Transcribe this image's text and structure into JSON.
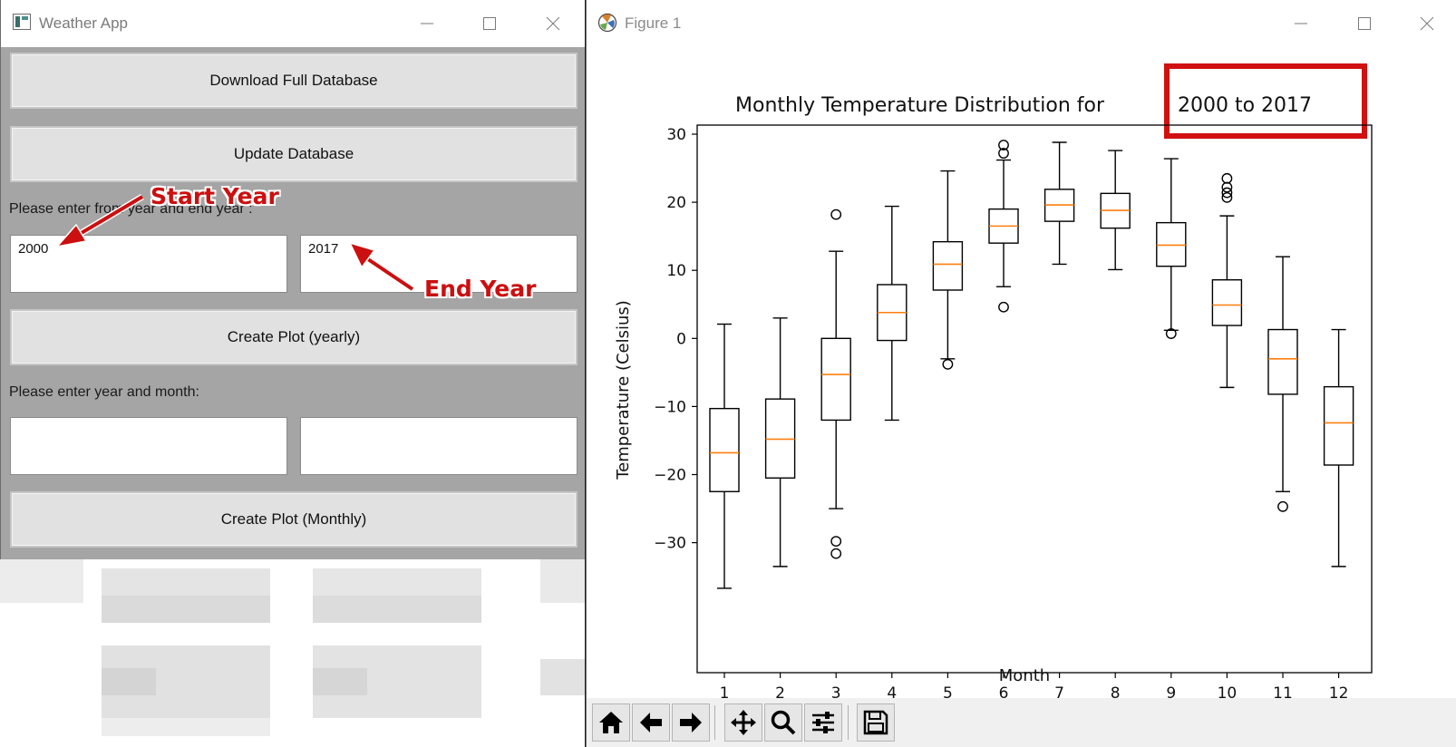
{
  "weather_app": {
    "title": "Weather App",
    "buttons": {
      "download": "Download Full Database",
      "update": "Update Database",
      "plot_yearly": "Create Plot (yearly)",
      "plot_monthly": "Create Plot (Monthly)"
    },
    "labels": {
      "year_range": "Please enter from year and end year :",
      "year_month": "Please enter year and month:"
    },
    "inputs": {
      "start_year": "2000",
      "end_year": "2017",
      "year": "",
      "month": ""
    },
    "annotations": {
      "start": "Start Year",
      "end": "End Year"
    }
  },
  "figure": {
    "title": "Figure 1"
  },
  "icons": [
    "app-icon",
    "figure-icon",
    "minimize-icon",
    "maximize-icon",
    "close-icon",
    "home-icon",
    "back-arrow-icon",
    "forward-arrow-icon",
    "pan-icon",
    "zoom-icon",
    "configure-icon",
    "save-icon"
  ],
  "colors": {
    "annotation_red": "#cc0f0f",
    "median_orange": "#ff7f0e",
    "app_background": "#a5a5a5"
  },
  "chart_data": {
    "type": "boxplot",
    "title_prefix": "Monthly Temperature Distribution for",
    "title_highlight": "2000 to 2017",
    "xlabel": "Month",
    "ylabel": "Temperature (Celsius)",
    "categories": [
      "1",
      "2",
      "3",
      "4",
      "5",
      "6",
      "7",
      "8",
      "9",
      "10",
      "11",
      "12"
    ],
    "ylim": [
      -40,
      32
    ],
    "yticks": [
      30,
      20,
      10,
      0,
      -10,
      -20,
      -30
    ],
    "yticklabels": [
      "30",
      "20",
      "10",
      "0",
      "−10",
      "−20",
      "−30"
    ],
    "boxes": [
      {
        "whislo": -36.7,
        "q1": -22.5,
        "med": -16.8,
        "q3": -10.3,
        "whishi": 2.1,
        "fliers": []
      },
      {
        "whislo": -33.5,
        "q1": -20.5,
        "med": -14.8,
        "q3": -8.9,
        "whishi": 3.0,
        "fliers": []
      },
      {
        "whislo": -25.0,
        "q1": -12.0,
        "med": -5.3,
        "q3": 0.0,
        "whishi": 12.8,
        "fliers": [
          18.2,
          -29.8,
          -31.6
        ]
      },
      {
        "whislo": -12.0,
        "q1": -0.3,
        "med": 3.8,
        "q3": 7.9,
        "whishi": 19.4,
        "fliers": []
      },
      {
        "whislo": -3.0,
        "q1": 7.1,
        "med": 10.9,
        "q3": 14.2,
        "whishi": 24.6,
        "fliers": [
          -3.8
        ]
      },
      {
        "whislo": 7.6,
        "q1": 14.0,
        "med": 16.5,
        "q3": 19.0,
        "whishi": 26.2,
        "fliers": [
          28.4,
          27.2,
          4.6
        ]
      },
      {
        "whislo": 10.9,
        "q1": 17.2,
        "med": 19.6,
        "q3": 21.9,
        "whishi": 28.8,
        "fliers": []
      },
      {
        "whislo": 10.1,
        "q1": 16.2,
        "med": 18.8,
        "q3": 21.3,
        "whishi": 27.6,
        "fliers": []
      },
      {
        "whislo": 1.2,
        "q1": 10.6,
        "med": 13.7,
        "q3": 17.0,
        "whishi": 26.4,
        "fliers": [
          0.7
        ]
      },
      {
        "whislo": -7.2,
        "q1": 1.9,
        "med": 4.9,
        "q3": 8.6,
        "whishi": 18.0,
        "fliers": [
          23.5,
          22.2,
          21.4,
          20.7
        ]
      },
      {
        "whislo": -22.5,
        "q1": -8.2,
        "med": -3.0,
        "q3": 1.3,
        "whishi": 12.0,
        "fliers": [
          -24.7
        ]
      },
      {
        "whislo": -33.5,
        "q1": -18.6,
        "med": -12.4,
        "q3": -7.1,
        "whishi": 1.3,
        "fliers": []
      }
    ],
    "grid": false,
    "box_color": "#000000",
    "median_color": "#ff7f0e"
  }
}
